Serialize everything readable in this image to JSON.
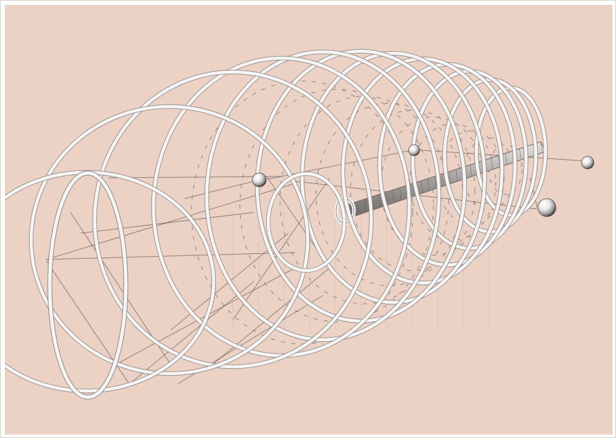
{
  "image": {
    "subject": "wireframe-tunnel-render",
    "background_color": "#ecd2c5",
    "frame_color": "#ffffff",
    "ring_color": "#f5f5f5",
    "ring_edge_color": "#8e8884",
    "wire_color": "#5a5553",
    "sphere_color": "#f4f4f4",
    "visible_text": []
  },
  "structure": {
    "large_hoops": 12,
    "inner_hoop": 1,
    "inner_rings": 10,
    "core_tube": 1,
    "spheres": 4
  }
}
